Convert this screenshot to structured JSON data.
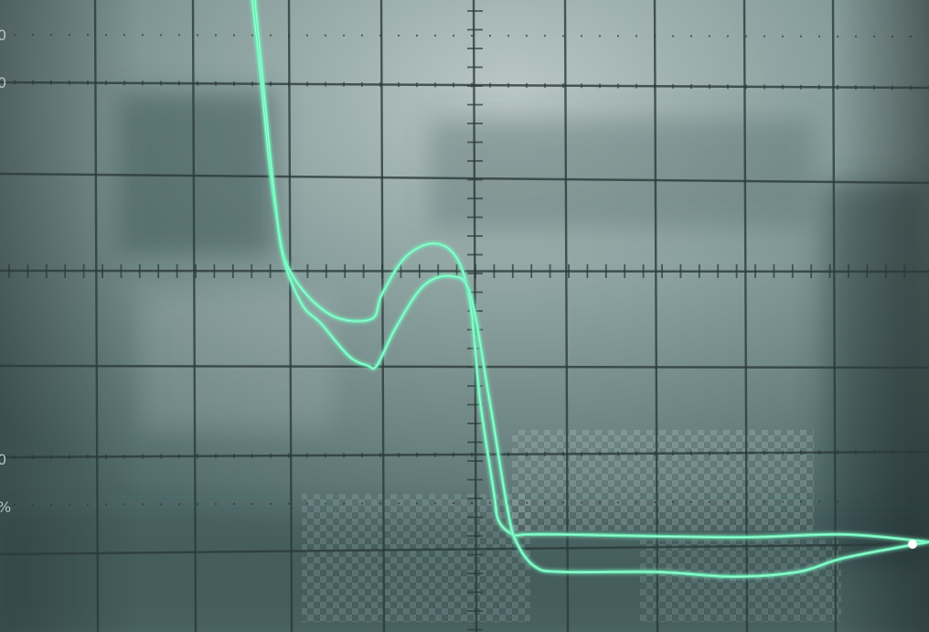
{
  "graticule": {
    "left_labels": [
      "0",
      "0",
      "0",
      "%"
    ]
  },
  "colors": {
    "screen_base": "#5f7978",
    "screen_glare": "#b9c7c4",
    "grid_line": "#2b3a3a",
    "trace": "#5ff0b4",
    "trace_glow": "#b8ffe0"
  },
  "chart_data": {
    "type": "line",
    "title": "",
    "xlabel": "",
    "ylabel": "",
    "xlim": [
      0,
      10
    ],
    "ylim": [
      0,
      6.8
    ],
    "grid": true,
    "series": [
      {
        "x": [
          2.65,
          2.75,
          2.85,
          2.95,
          3.05,
          3.3,
          3.6,
          3.95,
          4.05,
          4.3,
          4.6,
          4.85,
          5.0,
          5.1,
          5.25,
          5.3,
          5.45,
          5.6,
          6.0,
          7.0,
          8.0,
          9.0,
          9.9
        ],
        "y": [
          6.9,
          6.0,
          5.0,
          4.3,
          3.9,
          3.55,
          3.35,
          3.35,
          3.6,
          4.0,
          4.15,
          4.0,
          3.5,
          2.5,
          1.5,
          1.2,
          1.05,
          1.05,
          1.05,
          1.03,
          1.02,
          1.05,
          0.97
        ]
      },
      {
        "x": [
          2.68,
          2.8,
          2.9,
          3.0,
          3.2,
          3.4,
          3.7,
          3.9,
          4.0,
          4.2,
          4.5,
          4.8,
          5.0,
          5.2,
          5.4,
          5.5,
          5.7,
          6.0,
          7.0,
          7.8,
          8.5,
          9.0,
          9.9
        ],
        "y": [
          6.9,
          5.7,
          4.7,
          4.0,
          3.5,
          3.3,
          2.95,
          2.85,
          2.85,
          3.25,
          3.7,
          3.8,
          3.6,
          2.5,
          1.3,
          0.95,
          0.7,
          0.65,
          0.65,
          0.6,
          0.65,
          0.8,
          0.97
        ]
      }
    ]
  }
}
